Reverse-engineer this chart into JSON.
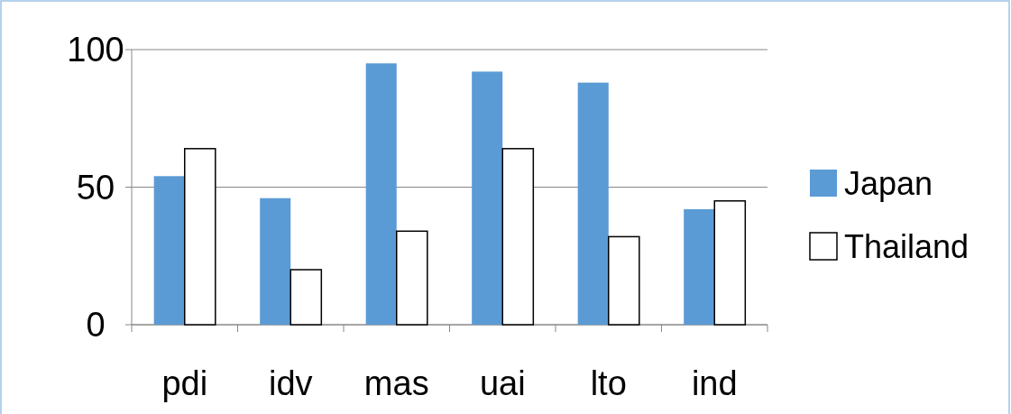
{
  "chart_data": {
    "type": "bar",
    "categories": [
      "pdi",
      "idv",
      "mas",
      "uai",
      "lto",
      "ind"
    ],
    "series": [
      {
        "name": "Japan",
        "color": "#5b9bd5",
        "values": [
          54,
          46,
          95,
          92,
          88,
          42
        ]
      },
      {
        "name": "Thailand",
        "color": "#ffffff",
        "values": [
          64,
          20,
          34,
          64,
          32,
          45
        ]
      }
    ],
    "ylim": [
      0,
      100
    ],
    "yticks": [
      0,
      50,
      100
    ],
    "grid": "y",
    "legend": "right"
  }
}
